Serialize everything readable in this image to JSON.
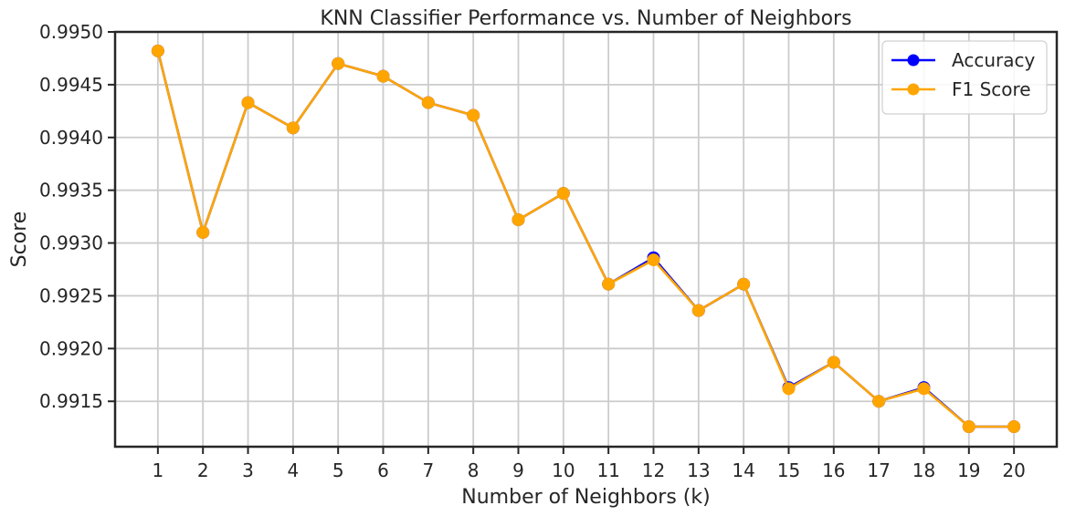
{
  "chart_data": {
    "type": "line",
    "title": "KNN Classifier Performance vs. Number of Neighbors",
    "xlabel": "Number of Neighbors (k)",
    "ylabel": "Score",
    "x": [
      1,
      2,
      3,
      4,
      5,
      6,
      7,
      8,
      9,
      10,
      11,
      12,
      13,
      14,
      15,
      16,
      17,
      18,
      19,
      20
    ],
    "x_ticks": [
      "1",
      "2",
      "3",
      "4",
      "5",
      "6",
      "7",
      "8",
      "9",
      "10",
      "11",
      "12",
      "13",
      "14",
      "15",
      "16",
      "17",
      "18",
      "19",
      "20"
    ],
    "y_ticks": [
      "0.9915",
      "0.9920",
      "0.9925",
      "0.9930",
      "0.9935",
      "0.9940",
      "0.9945",
      "0.9950"
    ],
    "y_tick_values": [
      0.9915,
      0.992,
      0.9925,
      0.993,
      0.9935,
      0.994,
      0.9945,
      0.995
    ],
    "ylim": [
      0.99107,
      0.995
    ],
    "xlim": [
      0.05,
      20.95
    ],
    "grid": true,
    "legend_position": "top-right",
    "series": [
      {
        "name": "Accuracy",
        "color": "#0000ff",
        "marker": "circle",
        "values": [
          0.99482,
          0.9931,
          0.99433,
          0.99409,
          0.9947,
          0.99458,
          0.99433,
          0.99421,
          0.99322,
          0.99347,
          0.99261,
          0.99286,
          0.99236,
          0.99261,
          0.99163,
          0.99187,
          0.9915,
          0.99163,
          0.99126,
          0.99126
        ]
      },
      {
        "name": "F1 Score",
        "color": "#ffa500",
        "marker": "circle",
        "values": [
          0.99482,
          0.9931,
          0.99433,
          0.99409,
          0.9947,
          0.99458,
          0.99433,
          0.99421,
          0.99322,
          0.99347,
          0.99261,
          0.99284,
          0.99236,
          0.99261,
          0.99162,
          0.99187,
          0.9915,
          0.99162,
          0.99126,
          0.99126
        ]
      }
    ]
  }
}
